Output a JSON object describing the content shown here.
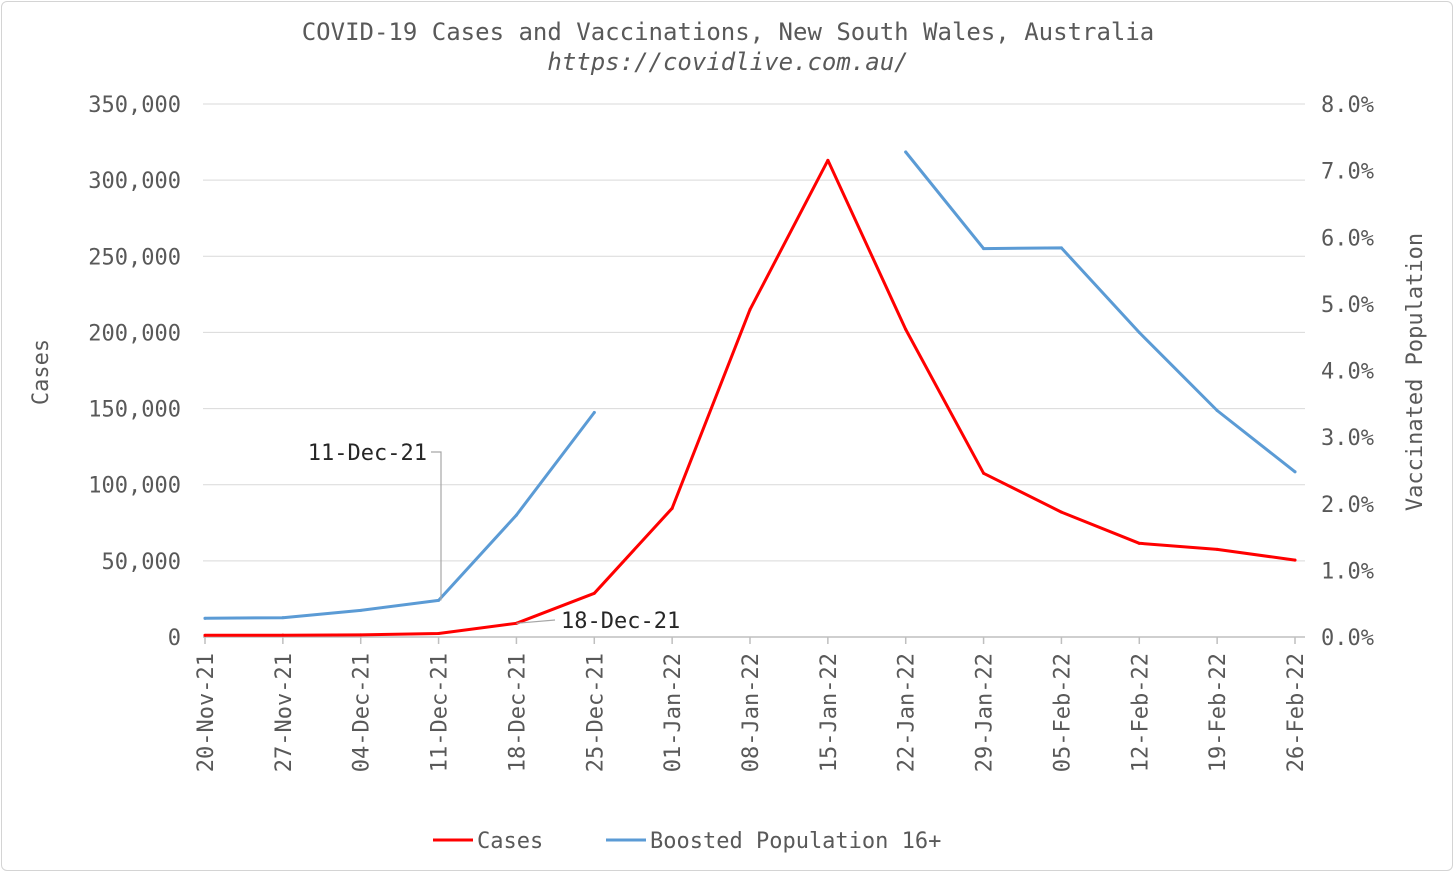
{
  "chart_data": {
    "type": "line",
    "title": "COVID-19 Cases and Vaccinations, New South Wales, Australia",
    "subtitle": "https://covidlive.com.au/",
    "ylabel": "Cases",
    "y2label": "Vaccinated Population",
    "ylim": [
      0,
      350000
    ],
    "y2lim": [
      0,
      0.08
    ],
    "y_ticks": [
      "0",
      "50,000",
      "100,000",
      "150,000",
      "200,000",
      "250,000",
      "300,000",
      "350,000"
    ],
    "y2_ticks": [
      "0.0%",
      "1.0%",
      "2.0%",
      "3.0%",
      "4.0%",
      "5.0%",
      "6.0%",
      "7.0%",
      "8.0%"
    ],
    "grid": true,
    "legend_position": "bottom",
    "categories": [
      "20-Nov-21",
      "27-Nov-21",
      "04-Dec-21",
      "11-Dec-21",
      "18-Dec-21",
      "25-Dec-21",
      "01-Jan-22",
      "08-Jan-22",
      "15-Jan-22",
      "22-Jan-22",
      "29-Jan-22",
      "05-Feb-22",
      "12-Feb-22",
      "19-Feb-22",
      "26-Feb-22"
    ],
    "series": [
      {
        "name": "Cases",
        "axis": "left",
        "color": "#ff0000",
        "values": [
          1100,
          1200,
          1400,
          2300,
          9000,
          28700,
          84500,
          215000,
          313000,
          202000,
          107500,
          82000,
          61500,
          57500,
          50500
        ]
      },
      {
        "name": "Boosted Population 16+",
        "axis": "right",
        "color": "#5b9bd5",
        "values": [
          0.0028,
          0.0029,
          0.004,
          0.0055,
          0.0183,
          0.0337,
          null,
          null,
          null,
          0.0728,
          0.0583,
          0.0584,
          0.0457,
          0.034,
          0.0248
        ]
      }
    ],
    "annotations": [
      {
        "label": "11-Dec-21",
        "category": "11-Dec-21",
        "series": "Boosted Population 16+"
      },
      {
        "label": "18-Dec-21",
        "category": "18-Dec-21",
        "series": "Cases"
      }
    ]
  }
}
